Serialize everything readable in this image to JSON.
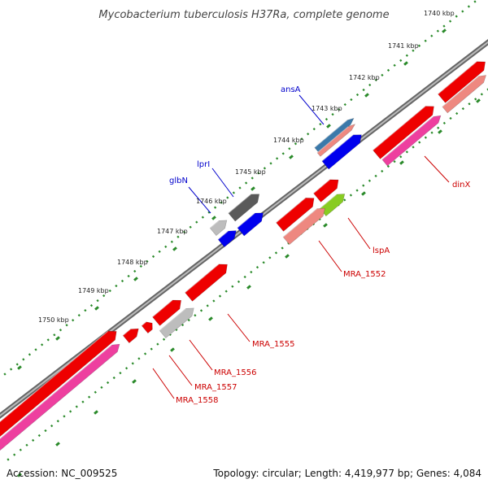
{
  "title": "Mycobacterium tuberculosis H37Ra, complete genome",
  "footer": {
    "accession": "Accession: NC_009525",
    "summary": "Topology: circular; Length: 4,419,977 bp; Genes: 4,084"
  },
  "colors": {
    "backbone": "#777777",
    "dots": "#2a8a2a",
    "label_blue": "#0000cc",
    "label_red": "#cc0000",
    "gene_red": "#ee0000",
    "gene_pink": "#ee3f9f",
    "gene_salmon": "#ee8880",
    "gene_blue": "#0000ee",
    "gene_grey_dark": "#5a5a5a",
    "gene_grey_light": "#bdbdbd",
    "gene_green": "#88cc22",
    "gene_steel": "#3b79aa"
  },
  "ticks": [
    {
      "label": "1740 kbp"
    },
    {
      "label": "1741 kbp"
    },
    {
      "label": "1742 kbp"
    },
    {
      "label": "1743 kbp"
    },
    {
      "label": "1744 kbp"
    },
    {
      "label": "1745 kbp"
    },
    {
      "label": "1746 kbp"
    },
    {
      "label": "1747 kbp"
    },
    {
      "label": "1748 kbp"
    },
    {
      "label": "1749 kbp"
    },
    {
      "label": "1750 kbp"
    }
  ],
  "gene_labels": [
    {
      "name": "ansA",
      "color": "blue"
    },
    {
      "name": "lprI",
      "color": "blue"
    },
    {
      "name": "glbN",
      "color": "blue"
    },
    {
      "name": "dinX",
      "color": "red"
    },
    {
      "name": "lspA",
      "color": "red"
    },
    {
      "name": "MRA_1552",
      "color": "red"
    },
    {
      "name": "MRA_1555",
      "color": "red"
    },
    {
      "name": "MRA_1556",
      "color": "red"
    },
    {
      "name": "MRA_1557",
      "color": "red"
    },
    {
      "name": "MRA_1558",
      "color": "red"
    }
  ]
}
